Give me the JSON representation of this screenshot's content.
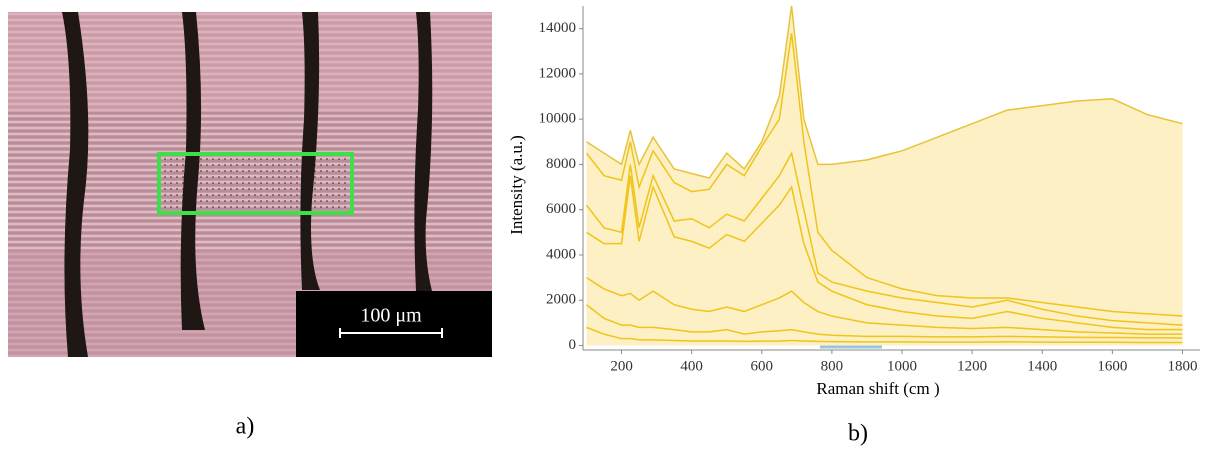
{
  "panel_a": {
    "scale_bar_label": "100 μm",
    "caption": "a)"
  },
  "panel_b": {
    "caption": "b)"
  },
  "chart_data": {
    "type": "line",
    "x_label": "Raman shift (cm )",
    "y_label": "Intensity (a.u.)",
    "x": [
      100,
      150,
      200,
      225,
      250,
      290,
      350,
      400,
      450,
      500,
      550,
      600,
      650,
      685,
      720,
      760,
      800,
      900,
      1000,
      1100,
      1200,
      1300,
      1400,
      1500,
      1600,
      1700,
      1800
    ],
    "series": [
      {
        "color": "#e8c33a",
        "fill": "#fcf0c4",
        "values": [
          9000,
          8500,
          8000,
          9500,
          8000,
          9200,
          7800,
          7600,
          7400,
          8500,
          7800,
          9000,
          11000,
          15000,
          10000,
          8000,
          8000,
          8200,
          8600,
          9200,
          9800,
          10400,
          10600,
          10800,
          10900,
          10200,
          9800
        ]
      },
      {
        "color": "#f0c419",
        "values": [
          8500,
          7500,
          7300,
          9000,
          7000,
          8600,
          7200,
          6800,
          6900,
          8000,
          7500,
          8800,
          10000,
          13800,
          9000,
          5000,
          4200,
          3000,
          2500,
          2200,
          2100,
          2100,
          1900,
          1700,
          1500,
          1400,
          1300
        ]
      },
      {
        "color": "#f0c419",
        "values": [
          6200,
          5200,
          5000,
          8000,
          5200,
          7500,
          5500,
          5600,
          5200,
          5800,
          5500,
          6500,
          7500,
          8500,
          6000,
          3200,
          2800,
          2400,
          2100,
          1900,
          1700,
          2000,
          1600,
          1300,
          1100,
          1000,
          900
        ]
      },
      {
        "color": "#f0c419",
        "values": [
          5000,
          4500,
          4500,
          7500,
          4600,
          7000,
          4800,
          4600,
          4300,
          4900,
          4600,
          5400,
          6200,
          7000,
          4500,
          2800,
          2400,
          1800,
          1500,
          1300,
          1200,
          1500,
          1200,
          1000,
          800,
          700,
          700
        ]
      },
      {
        "color": "#f0c419",
        "values": [
          3000,
          2500,
          2200,
          2300,
          2000,
          2400,
          1800,
          1600,
          1500,
          1700,
          1500,
          1800,
          2100,
          2400,
          1900,
          1500,
          1300,
          1000,
          900,
          800,
          750,
          800,
          700,
          600,
          550,
          500,
          500
        ]
      },
      {
        "color": "#f0c419",
        "values": [
          1800,
          1200,
          900,
          900,
          800,
          800,
          700,
          600,
          600,
          700,
          500,
          600,
          650,
          700,
          600,
          500,
          450,
          400,
          400,
          380,
          380,
          400,
          380,
          360,
          350,
          340,
          330
        ]
      },
      {
        "color": "#f0c419",
        "values": [
          800,
          500,
          300,
          300,
          250,
          250,
          220,
          200,
          200,
          200,
          180,
          190,
          200,
          220,
          200,
          180,
          170,
          160,
          160,
          150,
          150,
          160,
          150,
          140,
          140,
          130,
          130
        ]
      }
    ],
    "xlim": [
      90,
      1850
    ],
    "xticks": [
      200,
      400,
      600,
      800,
      1000,
      1200,
      1400,
      1600,
      1800
    ],
    "ylim": [
      -200,
      15000
    ],
    "yticks": [
      0,
      2000,
      4000,
      6000,
      8000,
      10000,
      12000,
      14000
    ]
  }
}
